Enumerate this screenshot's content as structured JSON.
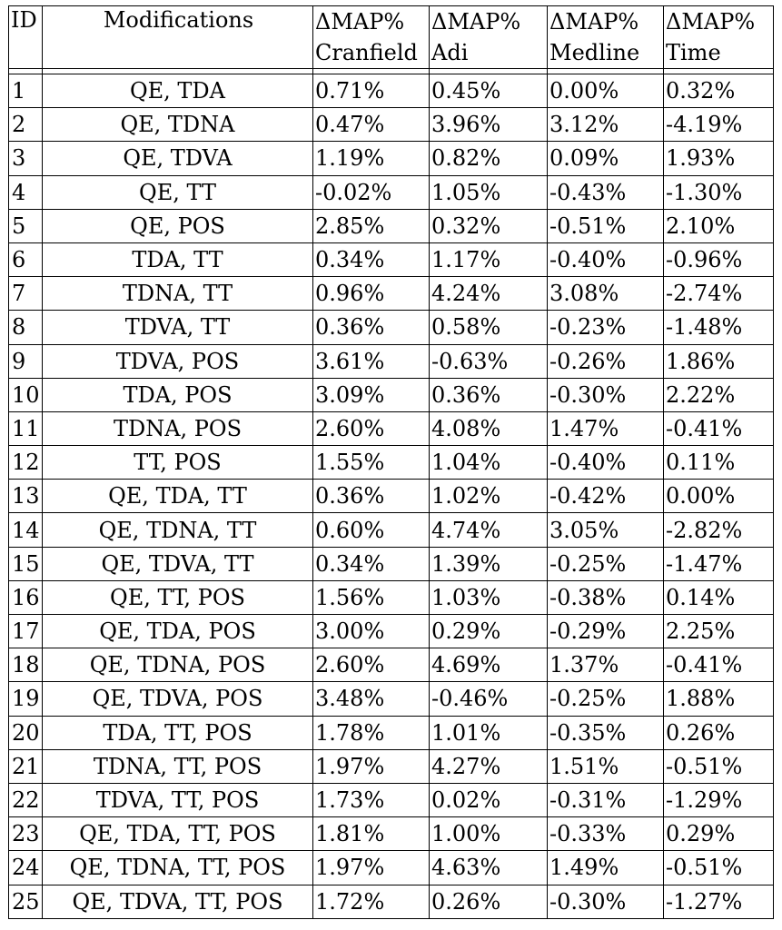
{
  "table": {
    "header": {
      "id": "ID",
      "modifications": "Modifications",
      "metric": "ΔMAP%",
      "datasets": [
        "Cranfield",
        "Adi",
        "Medline",
        "Time"
      ]
    },
    "rows": [
      {
        "id": "1",
        "mod": "QE, TDA",
        "cranfield": "0.71%",
        "adi": "0.45%",
        "medline": "0.00%",
        "time": "0.32%"
      },
      {
        "id": "2",
        "mod": "QE, TDNA",
        "cranfield": "0.47%",
        "adi": "3.96%",
        "medline": "3.12%",
        "time": "-4.19%"
      },
      {
        "id": "3",
        "mod": "QE, TDVA",
        "cranfield": "1.19%",
        "adi": "0.82%",
        "medline": "0.09%",
        "time": "1.93%"
      },
      {
        "id": "4",
        "mod": "QE, TT",
        "cranfield": "-0.02%",
        "adi": "1.05%",
        "medline": "-0.43%",
        "time": "-1.30%"
      },
      {
        "id": "5",
        "mod": "QE, POS",
        "cranfield": "2.85%",
        "adi": "0.32%",
        "medline": "-0.51%",
        "time": "2.10%"
      },
      {
        "id": "6",
        "mod": "TDA, TT",
        "cranfield": "0.34%",
        "adi": "1.17%",
        "medline": "-0.40%",
        "time": "-0.96%"
      },
      {
        "id": "7",
        "mod": "TDNA, TT",
        "cranfield": "0.96%",
        "adi": "4.24%",
        "medline": "3.08%",
        "time": "-2.74%"
      },
      {
        "id": "8",
        "mod": "TDVA, TT",
        "cranfield": "0.36%",
        "adi": "0.58%",
        "medline": "-0.23%",
        "time": "-1.48%"
      },
      {
        "id": "9",
        "mod": "TDVA, POS",
        "cranfield": "3.61%",
        "adi": "-0.63%",
        "medline": "-0.26%",
        "time": "1.86%"
      },
      {
        "id": "10",
        "mod": "TDA, POS",
        "cranfield": "3.09%",
        "adi": "0.36%",
        "medline": "-0.30%",
        "time": "2.22%"
      },
      {
        "id": "11",
        "mod": "TDNA, POS",
        "cranfield": "2.60%",
        "adi": "4.08%",
        "medline": "1.47%",
        "time": "-0.41%"
      },
      {
        "id": "12",
        "mod": "TT, POS",
        "cranfield": "1.55%",
        "adi": "1.04%",
        "medline": "-0.40%",
        "time": "0.11%"
      },
      {
        "id": "13",
        "mod": "QE, TDA, TT",
        "cranfield": "0.36%",
        "adi": "1.02%",
        "medline": "-0.42%",
        "time": "0.00%"
      },
      {
        "id": "14",
        "mod": "QE, TDNA, TT",
        "cranfield": "0.60%",
        "adi": "4.74%",
        "medline": "3.05%",
        "time": "-2.82%"
      },
      {
        "id": "15",
        "mod": "QE, TDVA, TT",
        "cranfield": "0.34%",
        "adi": "1.39%",
        "medline": "-0.25%",
        "time": "-1.47%"
      },
      {
        "id": "16",
        "mod": "QE, TT, POS",
        "cranfield": "1.56%",
        "adi": "1.03%",
        "medline": "-0.38%",
        "time": "0.14%"
      },
      {
        "id": "17",
        "mod": "QE, TDA, POS",
        "cranfield": "3.00%",
        "adi": "0.29%",
        "medline": "-0.29%",
        "time": "2.25%"
      },
      {
        "id": "18",
        "mod": "QE, TDNA, POS",
        "cranfield": "2.60%",
        "adi": "4.69%",
        "medline": "1.37%",
        "time": "-0.41%"
      },
      {
        "id": "19",
        "mod": "QE, TDVA, POS",
        "cranfield": "3.48%",
        "adi": "-0.46%",
        "medline": "-0.25%",
        "time": "1.88%"
      },
      {
        "id": "20",
        "mod": "TDA, TT, POS",
        "cranfield": "1.78%",
        "adi": "1.01%",
        "medline": "-0.35%",
        "time": "0.26%"
      },
      {
        "id": "21",
        "mod": "TDNA, TT, POS",
        "cranfield": "1.97%",
        "adi": "4.27%",
        "medline": "1.51%",
        "time": "-0.51%"
      },
      {
        "id": "22",
        "mod": "TDVA, TT, POS",
        "cranfield": "1.73%",
        "adi": "0.02%",
        "medline": "-0.31%",
        "time": "-1.29%"
      },
      {
        "id": "23",
        "mod": "QE, TDA, TT, POS",
        "cranfield": "1.81%",
        "adi": "1.00%",
        "medline": "-0.33%",
        "time": "0.29%"
      },
      {
        "id": "24",
        "mod": "QE, TDNA, TT, POS",
        "cranfield": "1.97%",
        "adi": "4.63%",
        "medline": "1.49%",
        "time": "-0.51%"
      },
      {
        "id": "25",
        "mod": "QE, TDVA, TT, POS",
        "cranfield": "1.72%",
        "adi": "0.26%",
        "medline": "-0.30%",
        "time": "-1.27%"
      }
    ]
  }
}
